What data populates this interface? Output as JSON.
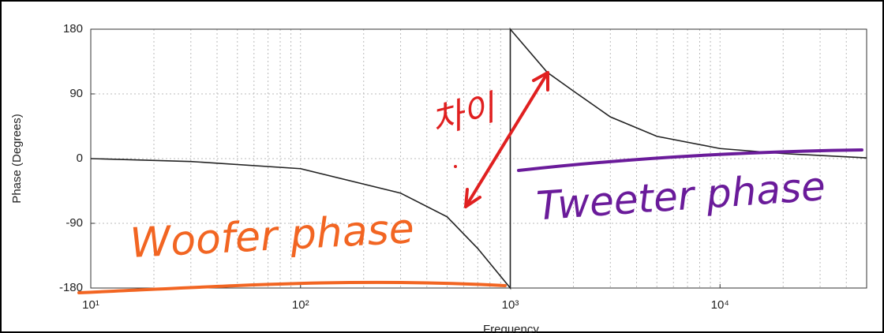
{
  "chart_data": {
    "type": "line",
    "x_label": "Frequency",
    "y_label": "Phase (Degrees)",
    "x": [
      10,
      30,
      100,
      300,
      500,
      700,
      1000,
      1000,
      1500,
      2000,
      3000,
      5000,
      10000,
      20000,
      50000
    ],
    "values": [
      0,
      -4,
      -14,
      -48,
      -81,
      -125,
      -180,
      180,
      120,
      94,
      58,
      31,
      14,
      7,
      1
    ],
    "color": "#222222",
    "xlim": [
      10,
      50000
    ],
    "ylim": [
      -180,
      180
    ],
    "log_x": true,
    "grid": true,
    "minor_grid": true,
    "xticks": [
      {
        "value": 10,
        "label": "10¹"
      },
      {
        "value": 100,
        "label": "10²"
      },
      {
        "value": 1000,
        "label": "10³"
      },
      {
        "value": 10000,
        "label": "10⁴"
      }
    ],
    "yticks": [
      -180,
      -90,
      0,
      90,
      180
    ],
    "annotations": [
      {
        "text": "Woofer phase",
        "color": "#f26522"
      },
      {
        "text": "Tweeter phase",
        "color": "#6a1b9a"
      },
      {
        "text": "차이",
        "color": "#e02020"
      }
    ]
  }
}
